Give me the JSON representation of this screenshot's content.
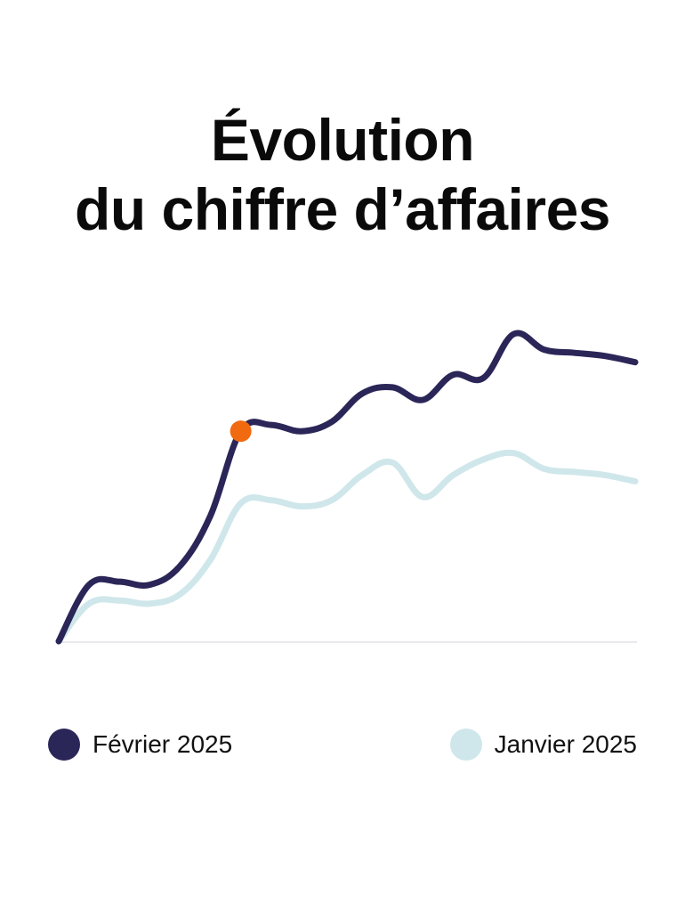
{
  "title": {
    "line1": "Évolution",
    "line2": "du chiffre d’affaires"
  },
  "colors": {
    "fevrier": "#2b2658",
    "janvier": "#cfe7ea",
    "highlight": "#f26a0f",
    "baseline": "#e8e8ee"
  },
  "legend": {
    "fevrier": "Février 2025",
    "janvier": "Janvier 2025"
  },
  "chart_data": {
    "type": "line",
    "grid": false,
    "legend_position": "bottom",
    "x": [
      0,
      1,
      2,
      3,
      4,
      5,
      6,
      7,
      8,
      9,
      10,
      11,
      12,
      13,
      14,
      15,
      16,
      17,
      18,
      19
    ],
    "ylim": [
      0,
      100
    ],
    "series": [
      {
        "name": "Février 2025",
        "color": "#2b2658",
        "values": [
          0,
          18,
          19,
          18,
          24,
          40,
          67,
          69,
          67,
          70,
          79,
          81,
          77,
          85,
          84,
          98,
          93,
          92,
          91,
          89
        ],
        "highlight_index": 6
      },
      {
        "name": "Janvier 2025",
        "color": "#cfe7ea",
        "values": [
          0,
          12,
          13,
          12,
          15,
          26,
          44,
          45,
          43,
          45,
          53,
          57,
          46,
          53,
          58,
          60,
          55,
          54,
          53,
          51
        ]
      }
    ]
  }
}
